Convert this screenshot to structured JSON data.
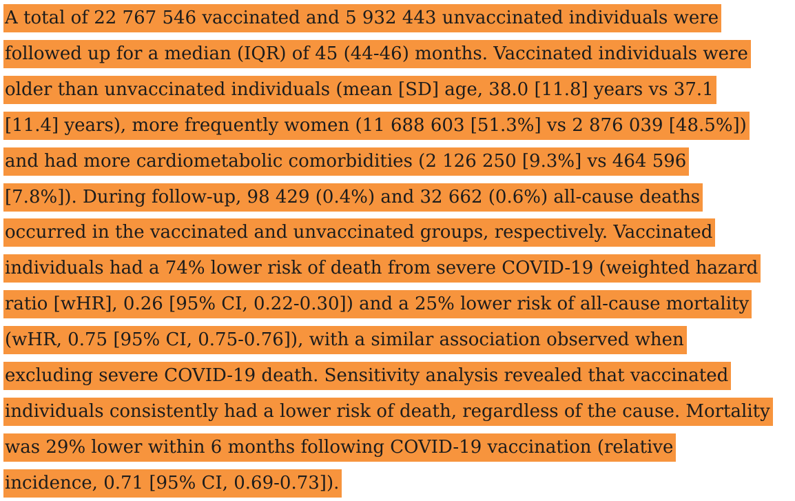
{
  "page": {
    "background_color": "#ffffff",
    "highlight_color": "#F7943D",
    "text_color": "#1c1c1c"
  },
  "abstract": {
    "lines": [
      "A total of 22 767 546 vaccinated and 5 932 443 unvaccinated individuals were",
      "followed up for a median (IQR) of 45 (44-46) months. Vaccinated individuals were",
      "older than unvaccinated individuals (mean [SD] age, 38.0 [11.8] years vs 37.1",
      "[11.4] years), more frequently women (11 688 603 [51.3%] vs 2 876 039 [48.5%])",
      "and had more cardiometabolic comorbidities (2 126 250 [9.3%] vs 464 596",
      "[7.8%]). During follow-up, 98 429 (0.4%) and 32 662 (0.6%) all-cause deaths",
      "occurred in the vaccinated and unvaccinated groups, respectively. Vaccinated",
      "individuals had a 74% lower risk of death from severe COVID-19 (weighted hazard",
      "ratio [wHR], 0.26 [95% CI, 0.22-0.30]) and a 25% lower risk of all-cause mortality",
      "(wHR, 0.75 [95% CI, 0.75-0.76]), with a similar association observed when",
      "excluding severe COVID-19 death. Sensitivity analysis revealed that vaccinated",
      "individuals consistently had a lower risk of death, regardless of the cause. Mortality",
      "was 29% lower within 6 months following COVID-19 vaccination (relative",
      "incidence, 0.71 [95% CI, 0.69-0.73])."
    ]
  }
}
